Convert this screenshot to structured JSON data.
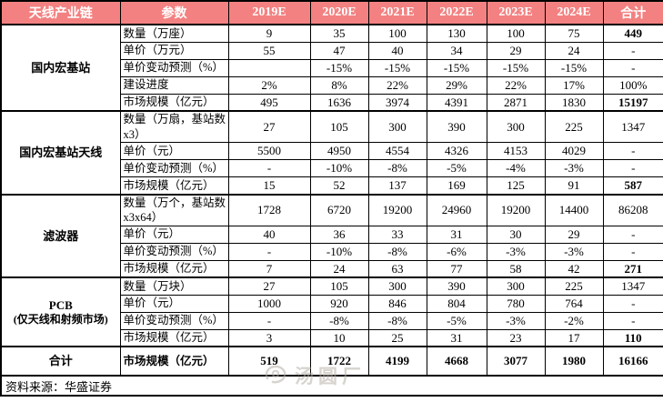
{
  "chart_data": {
    "type": "table",
    "columns": [
      "天线产业链",
      "参数",
      "2019E",
      "2020E",
      "2021E",
      "2022E",
      "2023E",
      "2024E",
      "合计"
    ],
    "groups": [
      {
        "name": "国内宏基站",
        "rows": [
          {
            "param": "数量（万座）",
            "values": [
              "9",
              "35",
              "100",
              "130",
              "100",
              "75"
            ],
            "total": "449",
            "total_bold": true
          },
          {
            "param": "单价（万元）",
            "values": [
              "55",
              "47",
              "40",
              "34",
              "29",
              "24"
            ],
            "total": "-",
            "total_bold": false
          },
          {
            "param": "单价变动预测（%）",
            "values": [
              "",
              "-15%",
              "-15%",
              "-15%",
              "-15%",
              "-15%"
            ],
            "total": "-",
            "total_bold": false
          },
          {
            "param": "建设进度",
            "values": [
              "2%",
              "8%",
              "22%",
              "29%",
              "22%",
              "17%"
            ],
            "total": "100%",
            "total_bold": false
          },
          {
            "param": "市场规模（亿元）",
            "values": [
              "495",
              "1636",
              "3974",
              "4391",
              "2871",
              "1830"
            ],
            "total": "15197",
            "total_bold": true
          }
        ]
      },
      {
        "name": "国内宏基站天线",
        "rows": [
          {
            "param": "数量（万扇，基站数x3）",
            "values": [
              "27",
              "105",
              "300",
              "390",
              "300",
              "225"
            ],
            "total": "1347",
            "total_bold": false
          },
          {
            "param": "单价（元）",
            "values": [
              "5500",
              "4950",
              "4554",
              "4326",
              "4153",
              "4029"
            ],
            "total": "-",
            "total_bold": false
          },
          {
            "param": "单价变动预测（%）",
            "values": [
              "-",
              "-10%",
              "-8%",
              "-5%",
              "-4%",
              "-3%"
            ],
            "total": "-",
            "total_bold": false
          },
          {
            "param": "市场规模（亿元）",
            "values": [
              "15",
              "52",
              "137",
              "169",
              "125",
              "91"
            ],
            "total": "587",
            "total_bold": true
          }
        ]
      },
      {
        "name": "滤波器",
        "rows": [
          {
            "param": "数量（万个，基站数x3x64）",
            "values": [
              "1728",
              "6720",
              "19200",
              "24960",
              "19200",
              "14400"
            ],
            "total": "86208",
            "total_bold": false
          },
          {
            "param": "单价（元）",
            "values": [
              "40",
              "36",
              "33",
              "31",
              "30",
              "29"
            ],
            "total": "-",
            "total_bold": false
          },
          {
            "param": "单价变动预测（%）",
            "values": [
              "-",
              "-10%",
              "-8%",
              "-6%",
              "-3%",
              "-3%"
            ],
            "total": "-",
            "total_bold": false
          },
          {
            "param": "市场规模（亿元）",
            "values": [
              "7",
              "24",
              "63",
              "77",
              "58",
              "42"
            ],
            "total": "271",
            "total_bold": true
          }
        ]
      },
      {
        "name": "PCB",
        "name2": "(仅天线和射频市场)",
        "rows": [
          {
            "param": "数量（万块）",
            "values": [
              "27",
              "105",
              "300",
              "390",
              "300",
              "225"
            ],
            "total": "1347",
            "total_bold": false
          },
          {
            "param": "单价（元）",
            "values": [
              "1000",
              "920",
              "846",
              "804",
              "780",
              "764"
            ],
            "total": "-",
            "total_bold": false
          },
          {
            "param": "单价变动预测（%）",
            "values": [
              "-",
              "-8%",
              "-8%",
              "-5%",
              "-3%",
              "-2%"
            ],
            "total": "-",
            "total_bold": false
          },
          {
            "param": "市场规模（亿元）",
            "values": [
              "3",
              "10",
              "25",
              "31",
              "23",
              "17"
            ],
            "total": "110",
            "total_bold": true
          }
        ]
      }
    ],
    "total_row": {
      "name": "合计",
      "param": "市场规模（亿元）",
      "values": [
        "519",
        "1722",
        "4199",
        "4668",
        "3077",
        "1980"
      ],
      "total": "16166"
    }
  },
  "footer": {
    "source": "资料来源：华盛证券"
  },
  "watermark": {
    "text": "汤圆厂"
  },
  "colors": {
    "header_bg": "#F38181",
    "header_text": "#FFFFFF",
    "border": "#000000"
  }
}
